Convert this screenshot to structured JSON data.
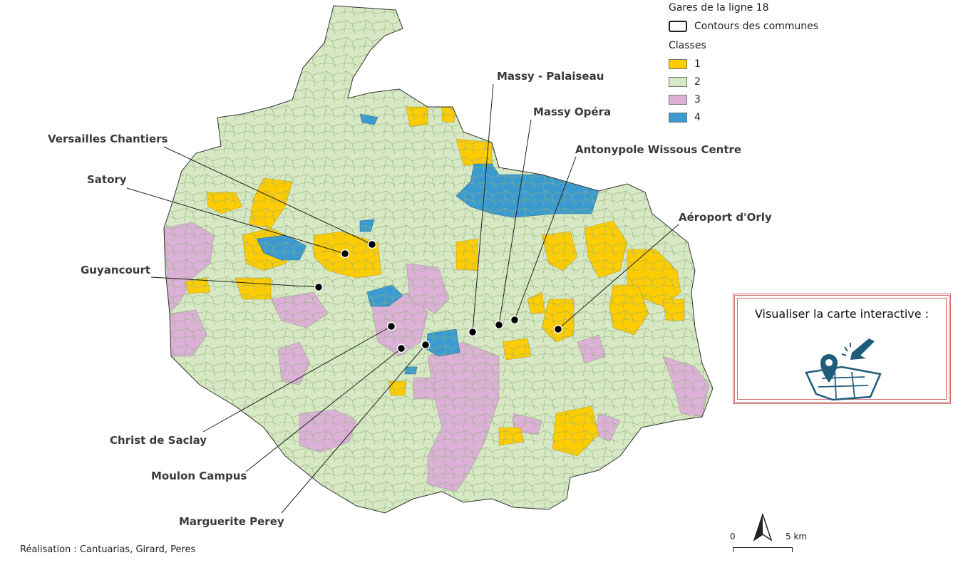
{
  "stations": [
    {
      "name": "Versailles Chantiers"
    },
    {
      "name": "Satory"
    },
    {
      "name": "Guyancourt"
    },
    {
      "name": "Christ de Saclay"
    },
    {
      "name": "Moulon Campus"
    },
    {
      "name": "Marguerite Perey"
    },
    {
      "name": "Massy - Palaiseau"
    },
    {
      "name": "Massy Opéra"
    },
    {
      "name": "Antonypole Wissous Centre"
    },
    {
      "name": "Aéroport d'Orly"
    }
  ],
  "legend": {
    "stations_title": "Gares de la ligne 18",
    "communes_label": "Contours des communes",
    "classes_title": "Classes",
    "classes": [
      {
        "label": "1",
        "color": "#ffcc00"
      },
      {
        "label": "2",
        "color": "#d6e8c4"
      },
      {
        "label": "3",
        "color": "#ddb0d8"
      },
      {
        "label": "4",
        "color": "#3b9bd0"
      }
    ]
  },
  "interactive": {
    "label": "Visualiser la carte interactive :",
    "icon": "map-pin-icon"
  },
  "scale": {
    "start": "0",
    "end": "5 km"
  },
  "north_arrow": "north-arrow-icon",
  "credit": "Réalisation : Cantuarias, Girard, Peres"
}
